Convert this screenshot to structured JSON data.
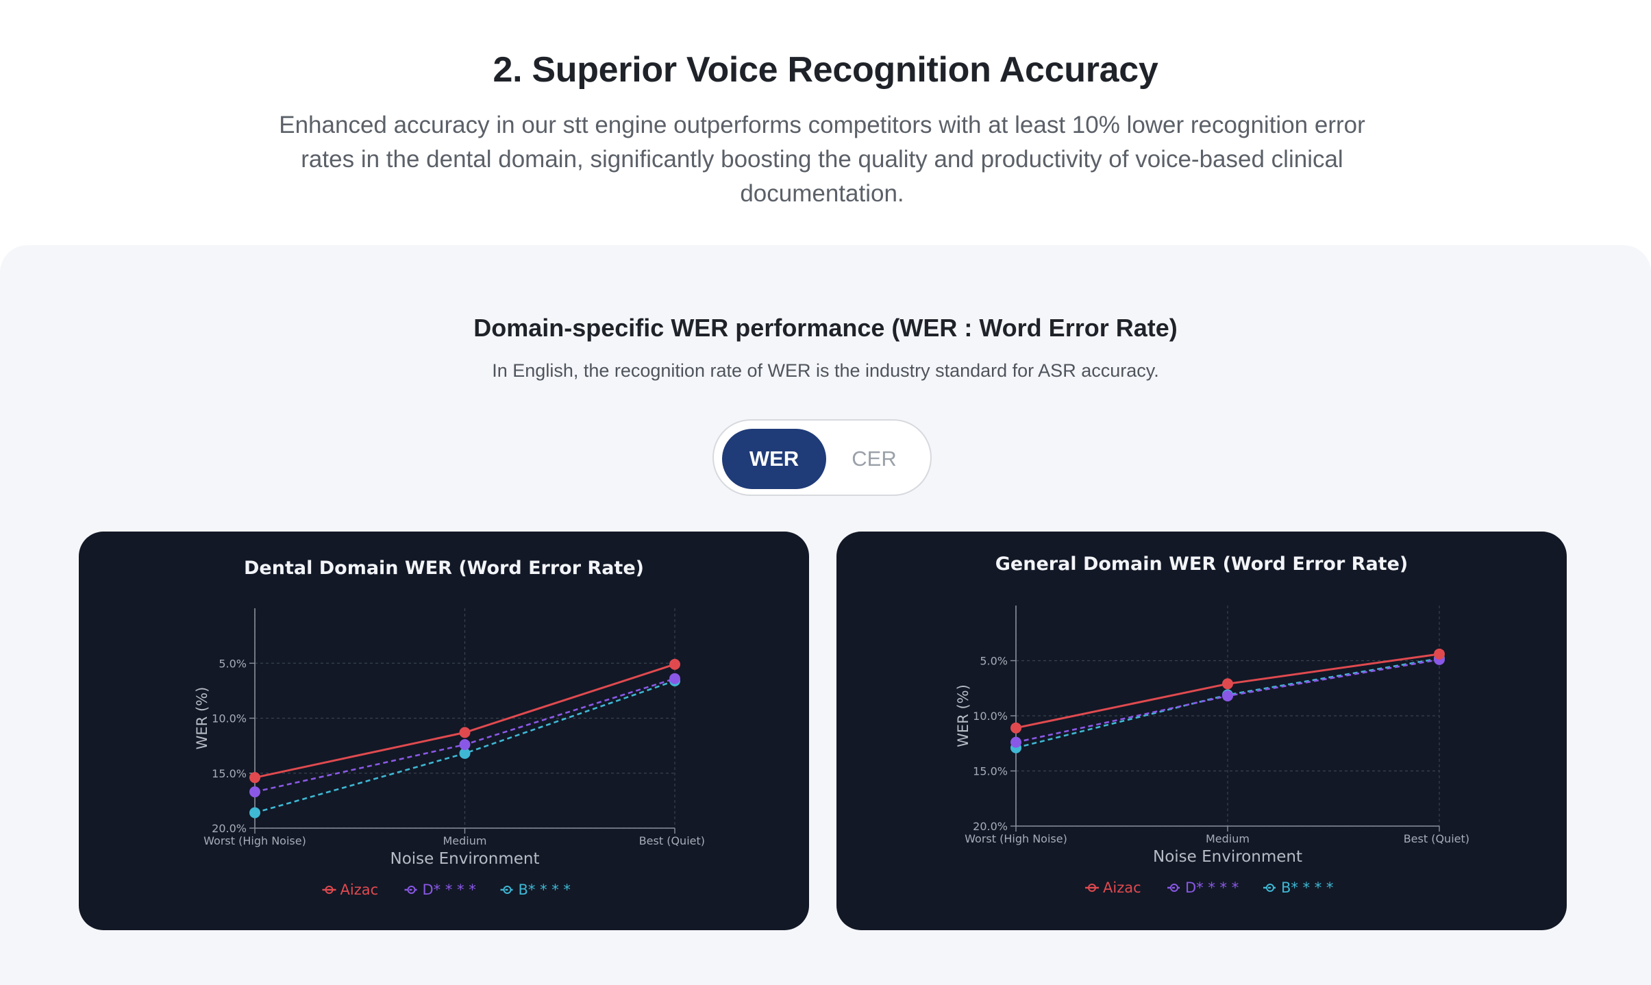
{
  "hero": {
    "title": "2. Superior Voice Recognition Accuracy",
    "description": "Enhanced accuracy in our stt engine outperforms competitors with at least 10% lower recognition error rates in the dental domain, significantly boosting the quality and productivity of voice-based clinical documentation."
  },
  "section": {
    "title": "Domain-specific WER performance (WER : Word Error Rate)",
    "subtitle": "In English, the recognition rate of WER is the industry standard for ASR accuracy."
  },
  "toggle": {
    "options": [
      "WER",
      "CER"
    ],
    "active": "WER"
  },
  "colors": {
    "card_bg": "#121826",
    "toggle_active": "#1f3b78",
    "Aizac": "#e04a4f",
    "D": "#8a58e6",
    "B": "#3fb8d4"
  },
  "chart_data": [
    {
      "type": "line",
      "title": "Dental Domain WER (Word Error Rate)",
      "xlabel": "Noise Environment",
      "ylabel": "WER (%)",
      "categories": [
        "Worst (High Noise)",
        "Medium",
        "Best (Quiet)"
      ],
      "y_ticks": [
        "5.0%",
        "10.0%",
        "15.0%",
        "20.0%"
      ],
      "ylim": [
        20,
        0
      ],
      "y_axis_inverted": true,
      "grid": true,
      "legend_position": "bottom",
      "series": [
        {
          "name": "Aizac",
          "color": "#e04a4f",
          "dashed": false,
          "values": [
            15.4,
            11.3,
            5.1
          ]
        },
        {
          "name": "D* * * *",
          "color": "#8a58e6",
          "dashed": true,
          "values": [
            16.7,
            12.4,
            6.4
          ]
        },
        {
          "name": "B* * * *",
          "color": "#3fb8d4",
          "dashed": true,
          "values": [
            18.6,
            13.2,
            6.6
          ]
        }
      ]
    },
    {
      "type": "line",
      "title": "General Domain WER (Word Error Rate)",
      "xlabel": "Noise Environment",
      "ylabel": "WER (%)",
      "categories": [
        "Worst (High Noise)",
        "Medium",
        "Best (Quiet)"
      ],
      "y_ticks": [
        "5.0%",
        "10.0%",
        "15.0%",
        "20.0%"
      ],
      "ylim": [
        20,
        0
      ],
      "y_axis_inverted": true,
      "grid": true,
      "legend_position": "bottom",
      "series": [
        {
          "name": "Aizac",
          "color": "#e04a4f",
          "dashed": false,
          "values": [
            11.1,
            7.1,
            4.4
          ]
        },
        {
          "name": "D* * * *",
          "color": "#8a58e6",
          "dashed": true,
          "values": [
            12.4,
            8.2,
            4.9
          ]
        },
        {
          "name": "B* * * *",
          "color": "#3fb8d4",
          "dashed": true,
          "values": [
            12.9,
            8.1,
            4.8
          ]
        }
      ]
    }
  ]
}
